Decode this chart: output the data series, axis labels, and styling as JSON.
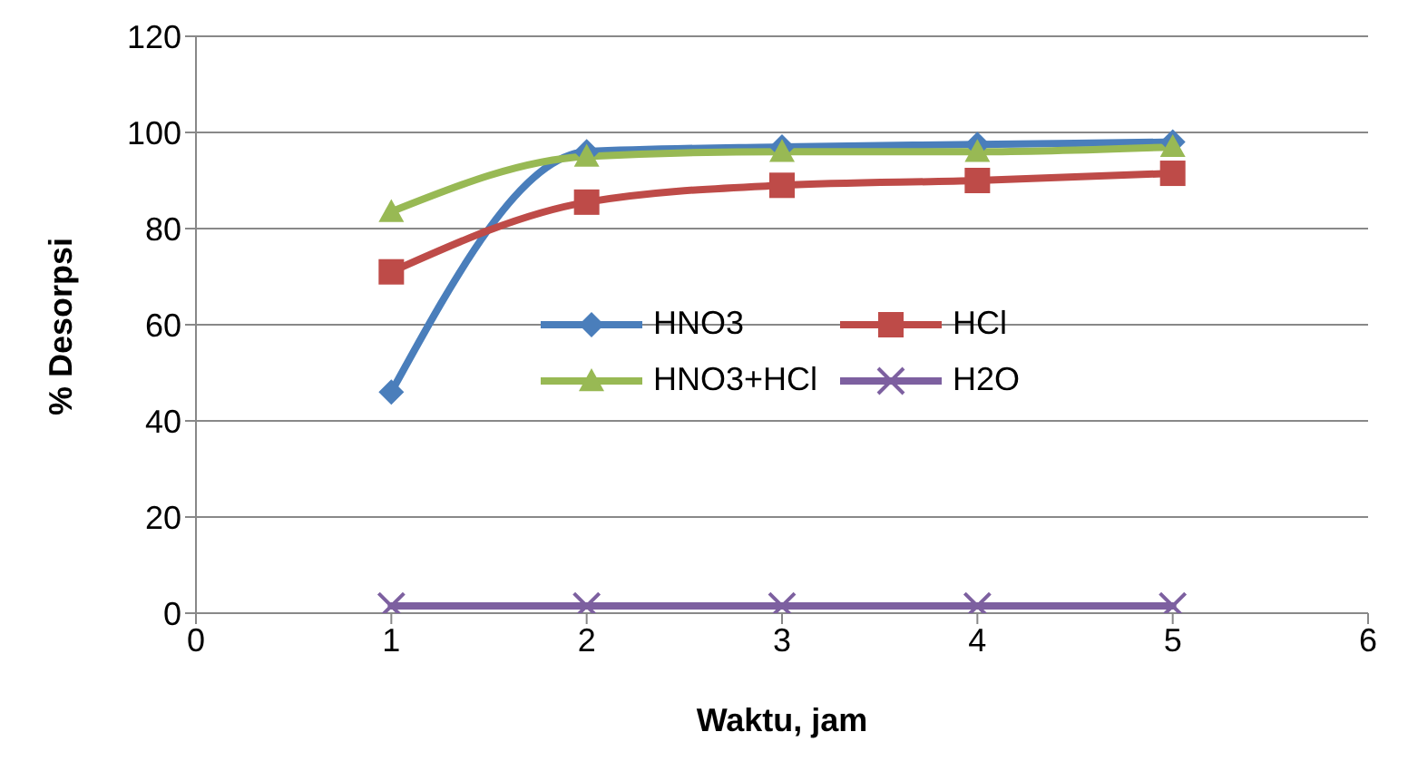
{
  "chart_data": {
    "type": "line",
    "xlabel": "Waktu, jam",
    "ylabel": "% Desorpsi",
    "x": [
      1,
      2,
      3,
      4,
      5
    ],
    "series": [
      {
        "name": "HNO3",
        "color": "#4a7ebb",
        "marker": "diamond",
        "values": [
          46,
          96,
          97,
          97.5,
          98
        ]
      },
      {
        "name": "HCl",
        "color": "#be4b48",
        "marker": "square",
        "values": [
          71,
          85.5,
          89,
          90,
          91.5
        ]
      },
      {
        "name": "HNO3+HCl",
        "color": "#98b954",
        "marker": "triangle",
        "values": [
          83.5,
          95,
          96,
          96,
          97
        ]
      },
      {
        "name": "H2O",
        "color": "#7d60a0",
        "marker": "cross",
        "values": [
          1.5,
          1.5,
          1.5,
          1.5,
          1.5
        ]
      }
    ],
    "xlim": [
      0,
      6
    ],
    "xticks": [
      0,
      1,
      2,
      3,
      4,
      5,
      6
    ],
    "ylim": [
      0,
      120
    ],
    "yticks": [
      0,
      20,
      40,
      60,
      80,
      100,
      120
    ],
    "grid": "y",
    "legend": "center"
  }
}
